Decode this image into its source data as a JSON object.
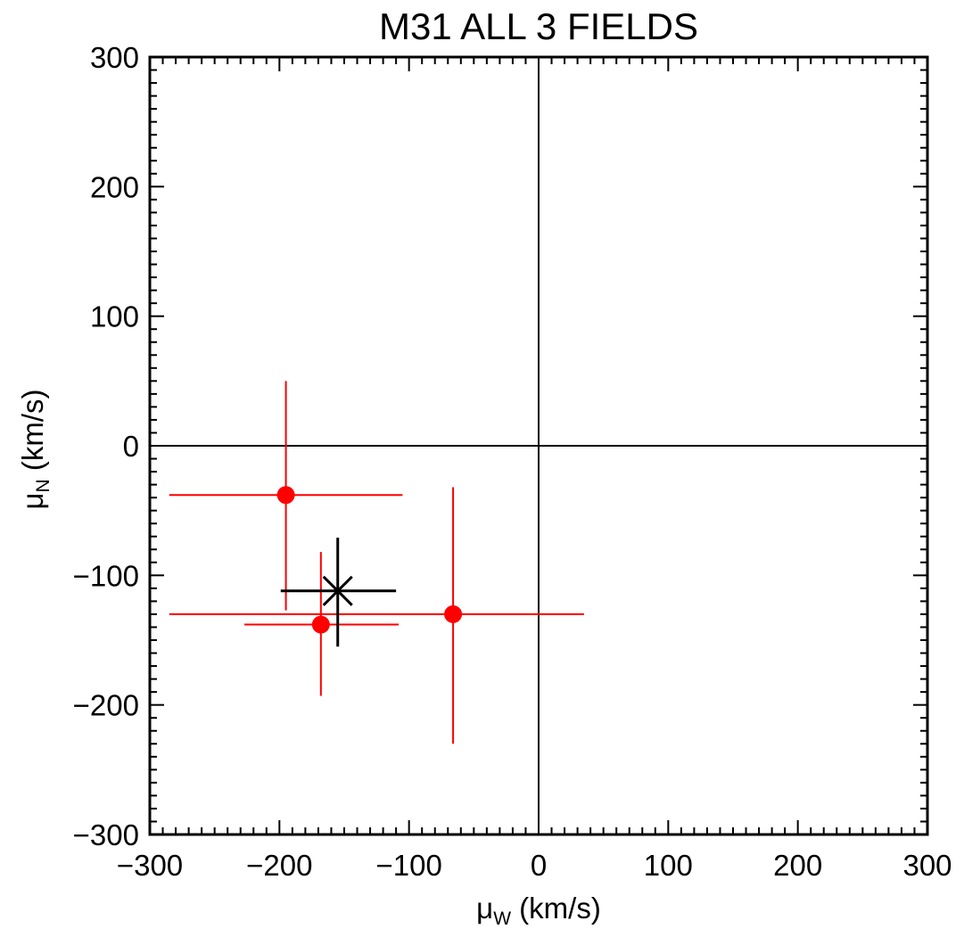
{
  "chart_data": {
    "type": "scatter",
    "title": "M31 ALL 3 FIELDS",
    "xlabel": {
      "symbol": "μ",
      "subscript": "W",
      "unit": " (km/s)"
    },
    "ylabel": {
      "symbol": "μ",
      "subscript": "N",
      "unit": " (km/s)"
    },
    "xlim": [
      -300,
      300
    ],
    "ylim": [
      -300,
      300
    ],
    "x_ticks": [
      -300,
      -200,
      -100,
      0,
      100,
      200,
      300
    ],
    "y_ticks": [
      -300,
      -200,
      -100,
      0,
      100,
      200,
      300
    ],
    "tick_labels_x": [
      "−300",
      "−200",
      "−100",
      "0",
      "100",
      "200",
      "300"
    ],
    "tick_labels_y": [
      "−300",
      "−200",
      "−100",
      "0",
      "100",
      "200",
      "300"
    ],
    "grid": false,
    "reference_lines": {
      "x": 0,
      "y": 0
    },
    "series": [
      {
        "marker": "filled-circle",
        "color": "#ff0000",
        "points": [
          {
            "x": -195,
            "y": -38,
            "x_low": -285,
            "x_high": -105,
            "y_low": -127,
            "y_high": 50
          },
          {
            "x": -168,
            "y": -138,
            "x_low": -227,
            "x_high": -108,
            "y_low": -193,
            "y_high": -82
          },
          {
            "x": -66,
            "y": -130,
            "x_low": -285,
            "x_high": 35,
            "y_low": -230,
            "y_high": -32
          }
        ]
      },
      {
        "marker": "cross",
        "color": "#000000",
        "points": [
          {
            "x": -155,
            "y": -112,
            "x_low": -199,
            "x_high": -110,
            "y_low": -155,
            "y_high": -71
          }
        ]
      }
    ]
  }
}
